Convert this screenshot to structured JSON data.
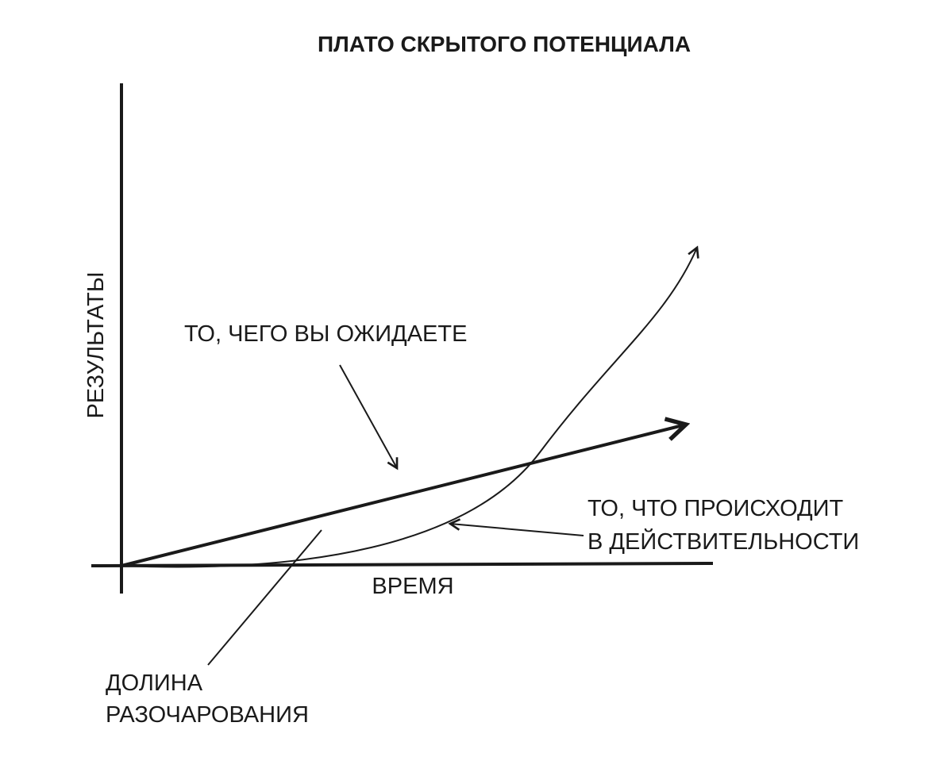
{
  "title": "ПЛАТО СКРЫТОГО ПОТЕНЦИАЛА",
  "y_axis_label": "РЕЗУЛЬТАТЫ",
  "x_axis_label": "ВРЕМЯ",
  "annotations": {
    "expected": "ТО, ЧЕГО ВЫ ОЖИДАЕТЕ",
    "actual": [
      "ТО, ЧТО ПРОИСХОДИТ",
      "В ДЕЙСТВИТЕЛЬНОСТИ"
    ],
    "valley": [
      "ДОЛИНА",
      "РАЗОЧАРОВАНИЯ"
    ]
  }
}
